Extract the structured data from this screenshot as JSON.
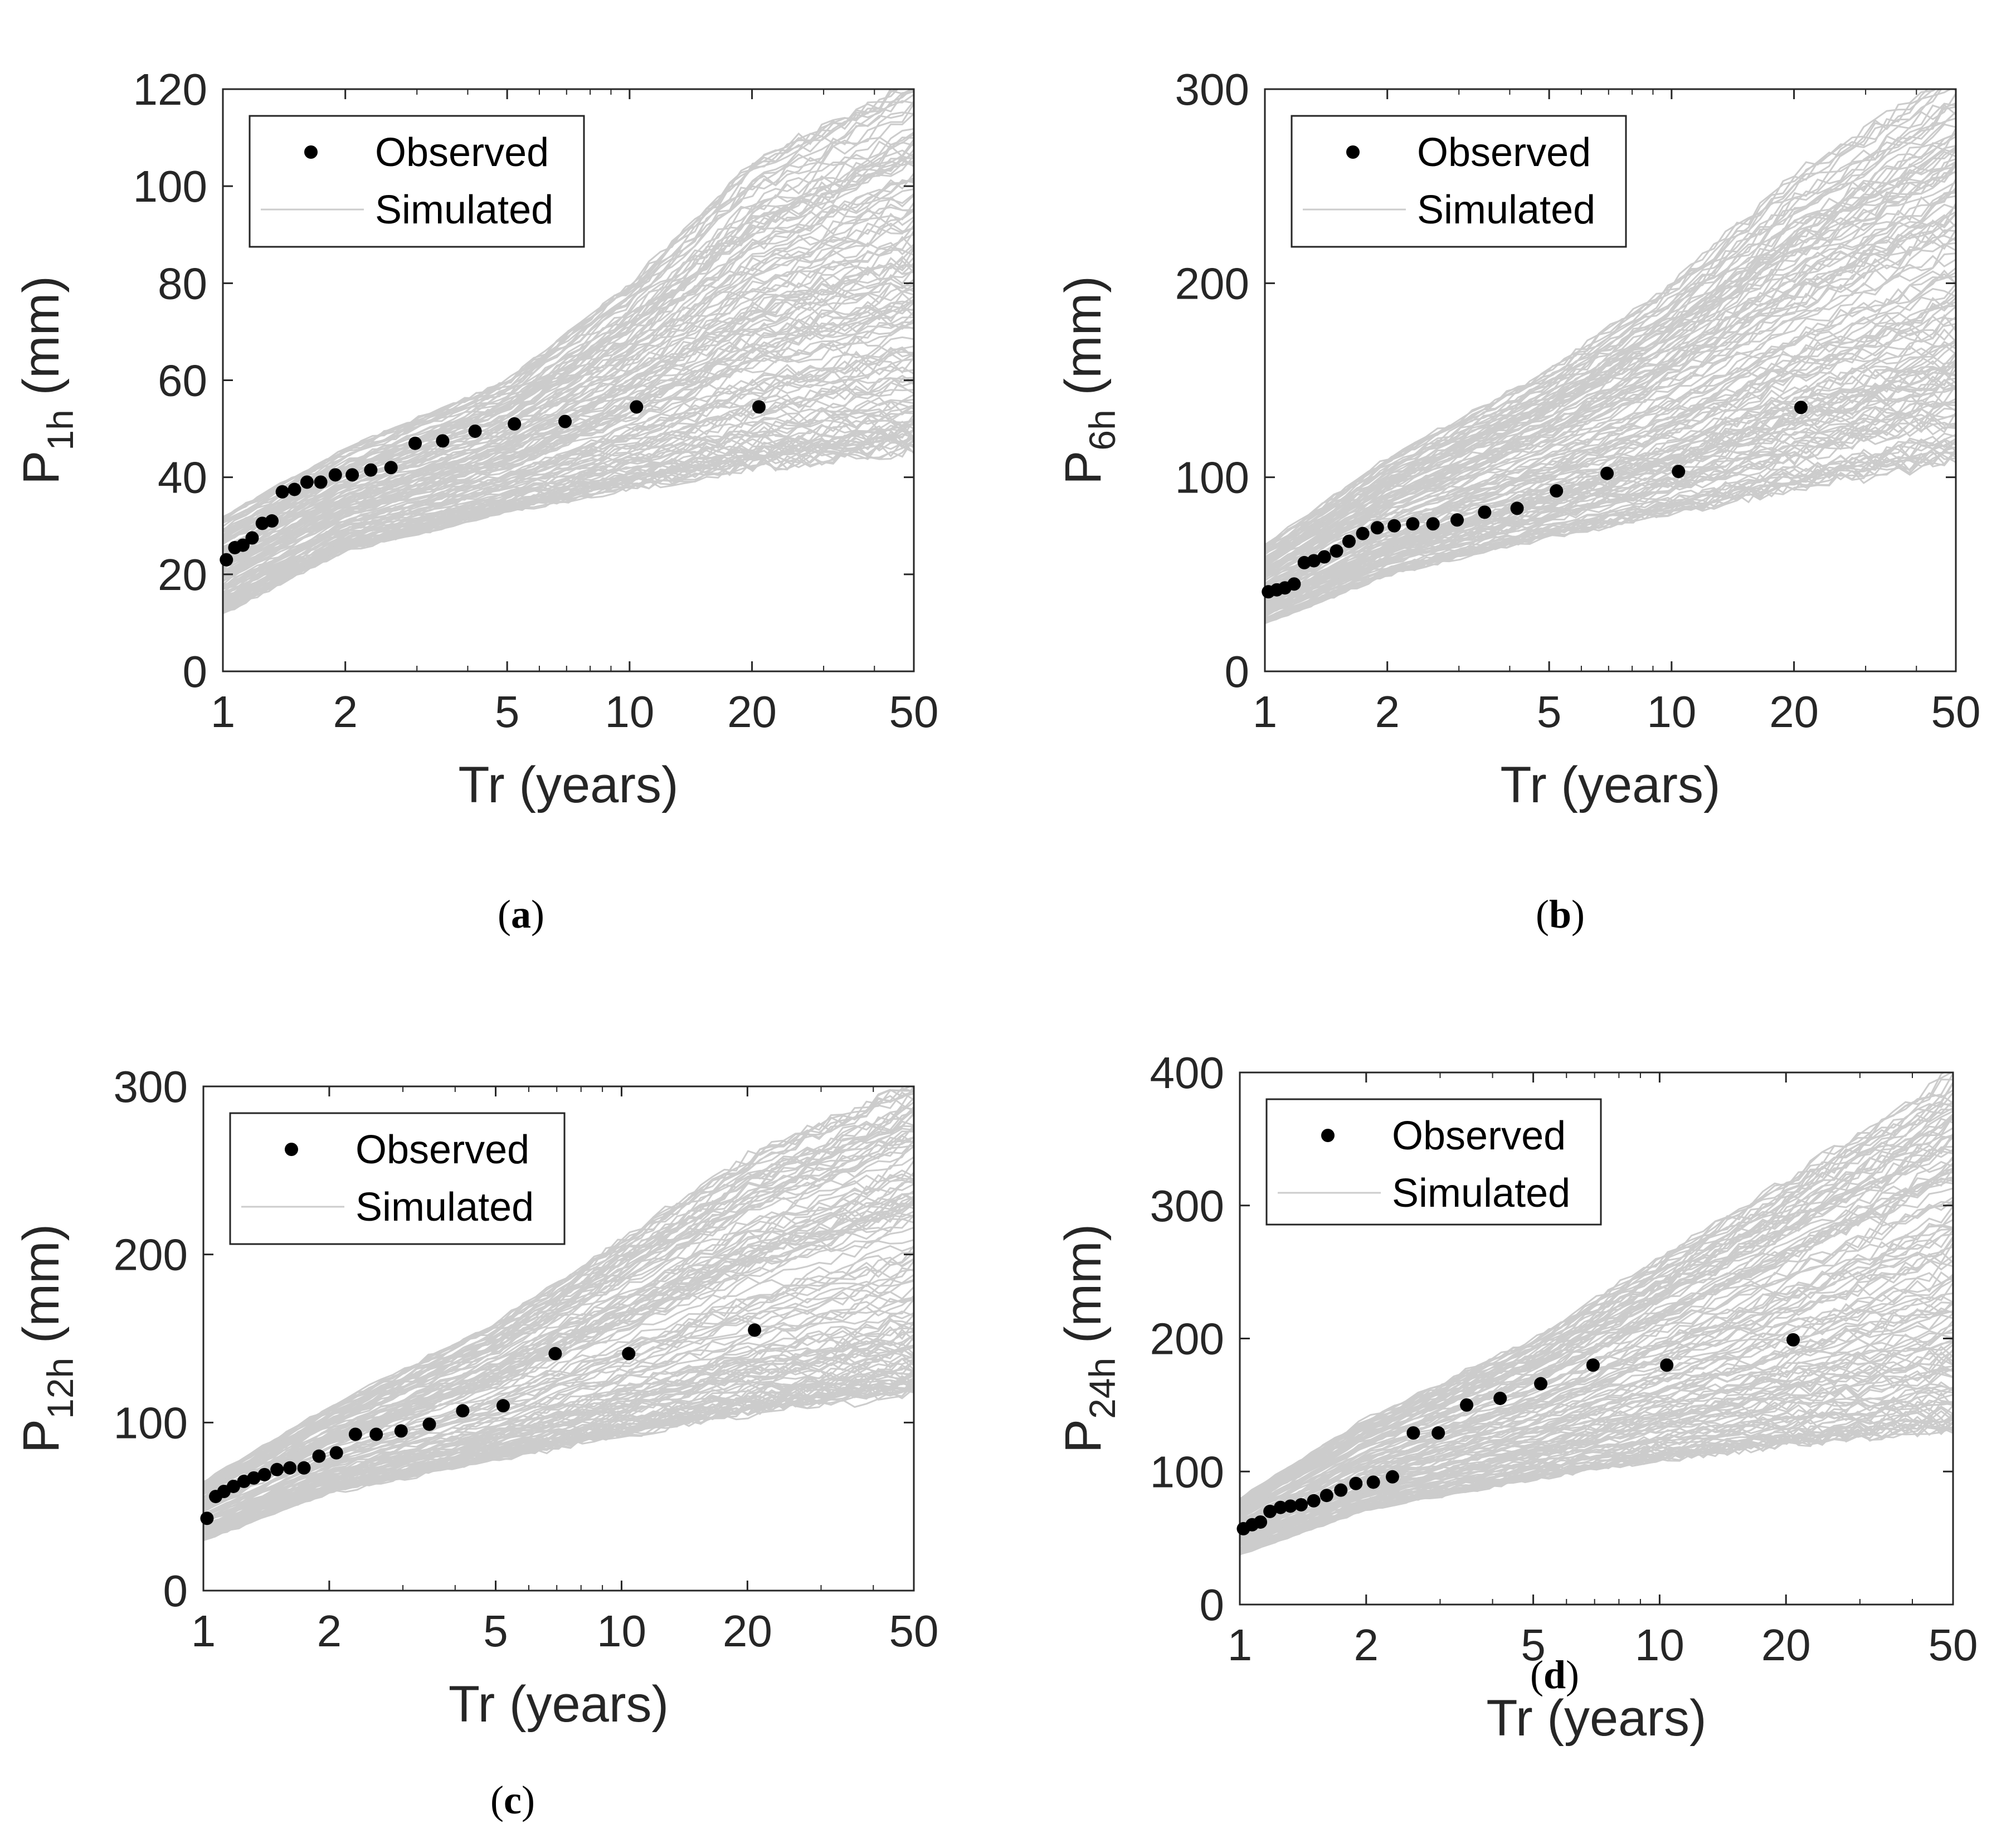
{
  "figure": {
    "x_label": "Tr (years)",
    "legend": {
      "observed": "Observed",
      "simulated": "Simulated"
    },
    "colors": {
      "observed": "#000000",
      "simulated": "#cccccc",
      "axis": "#262626"
    }
  },
  "chart_data": [
    {
      "id": "a",
      "type": "scatter",
      "panel_label": "a",
      "ylabel_prefix": "P",
      "ylabel_sub": "1h",
      "ylabel_suffix": " (mm)",
      "xlim": [
        1,
        50
      ],
      "ylim": [
        0,
        120
      ],
      "xticks": [
        1,
        2,
        5,
        10,
        20,
        50
      ],
      "yticks": [
        0,
        20,
        40,
        60,
        80,
        100,
        120
      ],
      "observed": {
        "name": "Observed",
        "x": [
          1.02,
          1.07,
          1.12,
          1.18,
          1.25,
          1.32,
          1.4,
          1.5,
          1.61,
          1.74,
          1.89,
          2.08,
          2.31,
          2.59,
          2.97,
          3.47,
          4.17,
          5.21,
          6.94,
          10.4,
          20.8
        ],
        "y": [
          23,
          25.5,
          26,
          27.5,
          30.5,
          31,
          37,
          37.5,
          39,
          39,
          40.5,
          40.5,
          41.5,
          42,
          47,
          47.5,
          49.5,
          51,
          51.5,
          54.5,
          54.5
        ]
      },
      "simulated": {
        "name": "Simulated",
        "low": [
          12,
          25,
          33,
          38,
          42,
          46
        ],
        "high": [
          32,
          46,
          60,
          80,
          105,
          122
        ],
        "mid": [
          22,
          33,
          43,
          53,
          63,
          75
        ]
      }
    },
    {
      "id": "b",
      "type": "scatter",
      "panel_label": "b",
      "ylabel_prefix": "P",
      "ylabel_sub": "6h",
      "ylabel_suffix": " (mm)",
      "xlim": [
        1,
        50
      ],
      "ylim": [
        0,
        300
      ],
      "xticks": [
        1,
        2,
        5,
        10,
        20,
        50
      ],
      "yticks": [
        0,
        100,
        200,
        300
      ],
      "observed": {
        "name": "Observed",
        "x": [
          1.02,
          1.07,
          1.12,
          1.18,
          1.25,
          1.32,
          1.4,
          1.5,
          1.61,
          1.74,
          1.89,
          2.08,
          2.31,
          2.59,
          2.97,
          3.47,
          4.17,
          5.21,
          6.94,
          10.4,
          20.8
        ],
        "y": [
          41,
          42,
          43,
          45,
          56,
          57,
          59,
          62,
          67,
          71,
          74,
          75,
          76,
          76,
          78,
          82,
          84,
          93,
          102,
          103,
          136
        ]
      },
      "simulated": {
        "name": "Simulated",
        "low": [
          25,
          50,
          70,
          82,
          95,
          110
        ],
        "high": [
          65,
          110,
          155,
          200,
          255,
          310
        ],
        "mid": [
          42,
          72,
          100,
          125,
          150,
          175
        ]
      }
    },
    {
      "id": "c",
      "type": "scatter",
      "panel_label": "c",
      "ylabel_prefix": "P",
      "ylabel_sub": "12h",
      "ylabel_suffix": " (mm)",
      "xlim": [
        1,
        50
      ],
      "ylim": [
        0,
        300
      ],
      "xticks": [
        1,
        2,
        5,
        10,
        20,
        50
      ],
      "yticks": [
        0,
        100,
        200,
        300
      ],
      "observed": {
        "name": "Observed",
        "x": [
          1.02,
          1.07,
          1.12,
          1.18,
          1.25,
          1.32,
          1.4,
          1.5,
          1.61,
          1.74,
          1.89,
          2.08,
          2.31,
          2.59,
          2.97,
          3.47,
          4.17,
          5.21,
          6.94,
          10.4,
          20.8
        ],
        "y": [
          43,
          56,
          59,
          62,
          65,
          67,
          69,
          72,
          73,
          73,
          80,
          82,
          93,
          93,
          95,
          99,
          107,
          110,
          141,
          141,
          155
        ]
      },
      "simulated": {
        "name": "Simulated",
        "low": [
          30,
          58,
          78,
          92,
          105,
          118
        ],
        "high": [
          65,
          110,
          160,
          210,
          260,
          305
        ],
        "mid": [
          45,
          78,
          108,
          135,
          160,
          185
        ]
      }
    },
    {
      "id": "d",
      "type": "scatter",
      "panel_label": "d",
      "ylabel_prefix": "P",
      "ylabel_sub": "24h",
      "ylabel_suffix": " (mm)",
      "xlim": [
        1,
        50
      ],
      "ylim": [
        0,
        400
      ],
      "xticks": [
        1,
        2,
        5,
        10,
        20,
        50
      ],
      "yticks": [
        0,
        100,
        200,
        300,
        400
      ],
      "observed": {
        "name": "Observed",
        "x": [
          1.02,
          1.07,
          1.12,
          1.18,
          1.25,
          1.32,
          1.4,
          1.5,
          1.61,
          1.74,
          1.89,
          2.08,
          2.31,
          2.59,
          2.97,
          3.47,
          4.17,
          5.21,
          6.94,
          10.4,
          20.8
        ],
        "y": [
          57,
          60,
          62,
          70,
          73,
          74,
          75,
          78,
          82,
          86,
          91,
          92,
          96,
          129,
          129,
          150,
          155,
          166,
          180,
          180,
          199
        ]
      },
      "simulated": {
        "name": "Simulated",
        "low": [
          38,
          72,
          95,
          110,
          122,
          135
        ],
        "high": [
          80,
          140,
          200,
          260,
          320,
          400
        ],
        "mid": [
          58,
          95,
          130,
          160,
          190,
          220
        ]
      }
    }
  ]
}
